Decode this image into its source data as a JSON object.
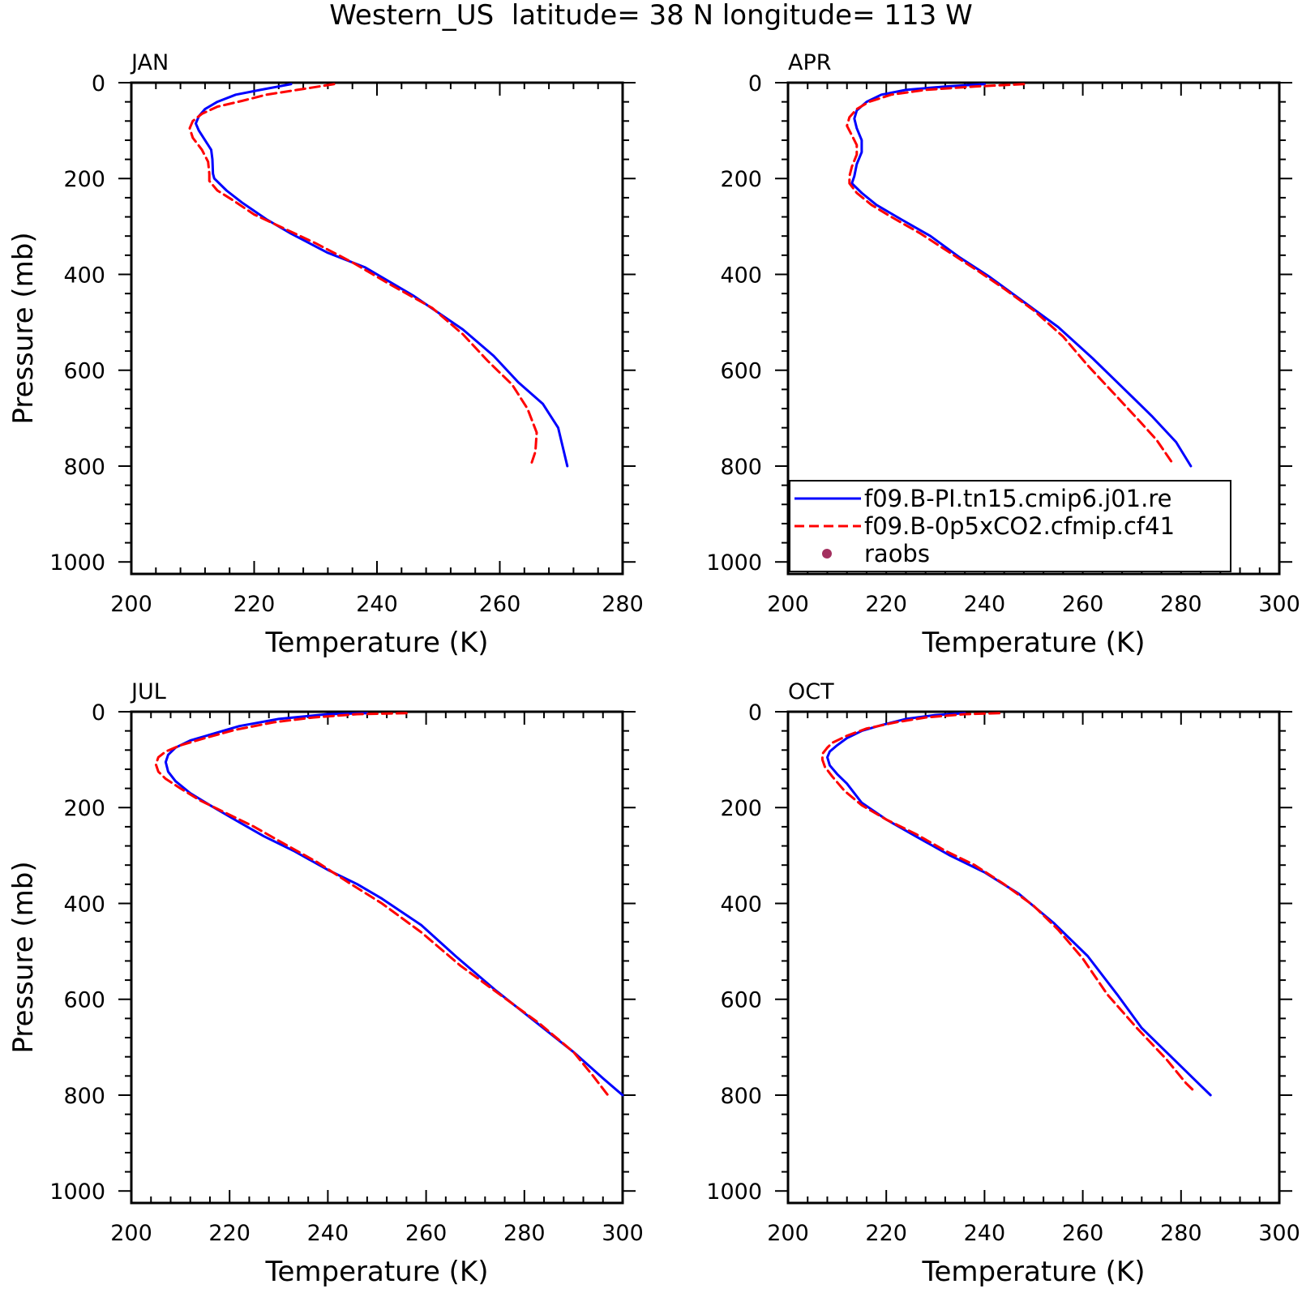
{
  "figure_title": "Western_US  latitude= 38 N longitude= 113 W",
  "legend": [
    {
      "label": "f09.B-PI.tn15.cmip6.j01.re",
      "color": "#0000ff",
      "style": "solid"
    },
    {
      "label": "f09.B-0p5xCO2.cfmip.cf41",
      "color": "#ff0000",
      "style": "dashed"
    },
    {
      "label": "raobs",
      "color": "#a3305f",
      "style": "marker"
    }
  ],
  "chart_data": [
    {
      "type": "line",
      "title": "JAN",
      "xlabel": "Temperature (K)",
      "ylabel": "Pressure (mb)",
      "xlim": [
        200,
        280
      ],
      "ylim": [
        0,
        1025
      ],
      "y_inverted": true,
      "xticks": [
        200,
        220,
        240,
        260,
        280
      ],
      "yticks": [
        0,
        200,
        400,
        600,
        800,
        1000
      ],
      "grid": false,
      "series": [
        {
          "color": "#0000ff",
          "style": "solid",
          "points": [
            [
              226,
              3
            ],
            [
              221,
              15
            ],
            [
              217,
              25
            ],
            [
              214,
              40
            ],
            [
              212,
              55
            ],
            [
              211,
              70
            ],
            [
              210.5,
              85
            ],
            [
              211,
              100
            ],
            [
              212,
              120
            ],
            [
              213,
              140
            ],
            [
              213.2,
              160
            ],
            [
              213.3,
              190
            ],
            [
              213.5,
              200
            ],
            [
              215.5,
              225
            ],
            [
              218,
              250
            ],
            [
              222,
              285
            ],
            [
              226,
              315
            ],
            [
              232,
              355
            ],
            [
              238,
              385
            ],
            [
              246,
              445
            ],
            [
              254,
              515
            ],
            [
              259,
              570
            ],
            [
              263,
              625
            ],
            [
              267,
              670
            ],
            [
              269.5,
              720
            ],
            [
              271,
              800
            ]
          ]
        },
        {
          "color": "#ff0000",
          "style": "dashed",
          "points": [
            [
              233,
              3
            ],
            [
              227,
              15
            ],
            [
              222,
              25
            ],
            [
              218,
              38
            ],
            [
              214,
              50
            ],
            [
              211.5,
              65
            ],
            [
              210,
              80
            ],
            [
              209.5,
              95
            ],
            [
              210,
              115
            ],
            [
              211.5,
              140
            ],
            [
              212.5,
              165
            ],
            [
              212.7,
              190
            ],
            [
              212.7,
              205
            ],
            [
              214,
              225
            ],
            [
              216.5,
              245
            ],
            [
              220,
              275
            ],
            [
              225,
              305
            ],
            [
              230,
              335
            ],
            [
              236,
              375
            ],
            [
              242,
              420
            ],
            [
              249,
              470
            ],
            [
              254,
              525
            ],
            [
              258,
              580
            ],
            [
              262,
              630
            ],
            [
              264.5,
              680
            ],
            [
              266,
              730
            ],
            [
              265.8,
              770
            ],
            [
              265,
              800
            ]
          ]
        }
      ]
    },
    {
      "type": "line",
      "title": "APR",
      "xlabel": "Temperature (K)",
      "ylabel": "",
      "xlim": [
        200,
        300
      ],
      "ylim": [
        0,
        1025
      ],
      "y_inverted": true,
      "xticks": [
        200,
        220,
        240,
        260,
        280,
        300
      ],
      "yticks": [
        0,
        200,
        400,
        600,
        800,
        1000
      ],
      "grid": false,
      "series": [
        {
          "color": "#0000ff",
          "style": "solid",
          "points": [
            [
              240,
              3
            ],
            [
              232,
              8
            ],
            [
              224,
              15
            ],
            [
              219,
              25
            ],
            [
              216,
              40
            ],
            [
              214,
              58
            ],
            [
              213.5,
              75
            ],
            [
              214,
              95
            ],
            [
              215,
              120
            ],
            [
              215,
              145
            ],
            [
              214,
              170
            ],
            [
              213.5,
              195
            ],
            [
              213,
              210
            ],
            [
              215,
              230
            ],
            [
              218,
              255
            ],
            [
              223,
              285
            ],
            [
              229,
              320
            ],
            [
              235,
              365
            ],
            [
              241,
              405
            ],
            [
              247,
              450
            ],
            [
              255,
              510
            ],
            [
              262,
              575
            ],
            [
              268,
              635
            ],
            [
              274,
              695
            ],
            [
              279,
              750
            ],
            [
              282,
              800
            ]
          ]
        },
        {
          "color": "#ff0000",
          "style": "dashed",
          "points": [
            [
              248,
              3
            ],
            [
              238,
              8
            ],
            [
              228,
              15
            ],
            [
              221,
              25
            ],
            [
              216.5,
              40
            ],
            [
              214,
              55
            ],
            [
              212.5,
              72
            ],
            [
              212,
              90
            ],
            [
              213,
              110
            ],
            [
              214,
              130
            ],
            [
              214,
              150
            ],
            [
              213,
              175
            ],
            [
              212.5,
              195
            ],
            [
              212.5,
              210
            ],
            [
              214,
              230
            ],
            [
              217,
              255
            ],
            [
              221,
              280
            ],
            [
              227,
              315
            ],
            [
              233,
              355
            ],
            [
              239,
              395
            ],
            [
              244,
              430
            ],
            [
              250,
              475
            ],
            [
              256,
              530
            ],
            [
              261,
              590
            ],
            [
              266,
              645
            ],
            [
              271,
              700
            ],
            [
              275,
              745
            ],
            [
              278,
              790
            ]
          ]
        }
      ]
    },
    {
      "type": "line",
      "title": "JUL",
      "xlabel": "Temperature (K)",
      "ylabel": "Pressure (mb)",
      "xlim": [
        200,
        300
      ],
      "ylim": [
        0,
        1025
      ],
      "y_inverted": true,
      "xticks": [
        200,
        220,
        240,
        260,
        280,
        300
      ],
      "yticks": [
        0,
        200,
        400,
        600,
        800,
        1000
      ],
      "grid": false,
      "series": [
        {
          "color": "#0000ff",
          "style": "solid",
          "points": [
            [
              248,
              3
            ],
            [
              240,
              5
            ],
            [
              230,
              15
            ],
            [
              222,
              30
            ],
            [
              217,
              45
            ],
            [
              212,
              60
            ],
            [
              209,
              75
            ],
            [
              207.5,
              90
            ],
            [
              207,
              105
            ],
            [
              207.5,
              125
            ],
            [
              209,
              145
            ],
            [
              212,
              170
            ],
            [
              216,
              195
            ],
            [
              221,
              225
            ],
            [
              227,
              260
            ],
            [
              233,
              290
            ],
            [
              240,
              330
            ],
            [
              246,
              360
            ],
            [
              251,
              390
            ],
            [
              259,
              445
            ],
            [
              266,
              510
            ],
            [
              274,
              580
            ],
            [
              282,
              645
            ],
            [
              290,
              710
            ],
            [
              296,
              765
            ],
            [
              300,
              800
            ]
          ]
        },
        {
          "color": "#ff0000",
          "style": "dashed",
          "points": [
            [
              256,
              3
            ],
            [
              246,
              5
            ],
            [
              237,
              12
            ],
            [
              229,
              22
            ],
            [
              221,
              38
            ],
            [
              215,
              55
            ],
            [
              210,
              70
            ],
            [
              207,
              83
            ],
            [
              205.5,
              95
            ],
            [
              205,
              110
            ],
            [
              205.5,
              125
            ],
            [
              207,
              140
            ],
            [
              210,
              160
            ],
            [
              214,
              185
            ],
            [
              219,
              210
            ],
            [
              225,
              240
            ],
            [
              231,
              275
            ],
            [
              238,
              315
            ],
            [
              244,
              355
            ],
            [
              251,
              400
            ],
            [
              259,
              460
            ],
            [
              267,
              530
            ],
            [
              275,
              590
            ],
            [
              283,
              650
            ],
            [
              290,
              710
            ],
            [
              294,
              760
            ],
            [
              297,
              800
            ]
          ]
        }
      ]
    },
    {
      "type": "line",
      "title": "OCT",
      "xlabel": "Temperature (K)",
      "ylabel": "",
      "xlim": [
        200,
        300
      ],
      "ylim": [
        0,
        1025
      ],
      "y_inverted": true,
      "xticks": [
        200,
        220,
        240,
        260,
        280,
        300
      ],
      "yticks": [
        0,
        200,
        400,
        600,
        800,
        1000
      ],
      "grid": false,
      "series": [
        {
          "color": "#0000ff",
          "style": "solid",
          "points": [
            [
              236,
              3
            ],
            [
              230,
              7
            ],
            [
              224,
              15
            ],
            [
              219,
              28
            ],
            [
              215,
              40
            ],
            [
              212,
              55
            ],
            [
              210,
              70
            ],
            [
              208.5,
              83
            ],
            [
              208,
              95
            ],
            [
              208.5,
              112
            ],
            [
              210,
              130
            ],
            [
              212,
              150
            ],
            [
              215,
              190
            ],
            [
              220,
              225
            ],
            [
              226,
              260
            ],
            [
              233,
              300
            ],
            [
              240,
              335
            ],
            [
              247,
              380
            ],
            [
              254,
              440
            ],
            [
              261,
              510
            ],
            [
              267,
              590
            ],
            [
              272,
              660
            ],
            [
              279,
              730
            ],
            [
              284,
              780
            ],
            [
              286,
              800
            ]
          ]
        },
        {
          "color": "#ff0000",
          "style": "dashed",
          "points": [
            [
              243,
              3
            ],
            [
              236,
              5
            ],
            [
              228,
              12
            ],
            [
              222,
              22
            ],
            [
              216,
              35
            ],
            [
              212,
              50
            ],
            [
              209,
              65
            ],
            [
              208,
              75
            ],
            [
              207,
              88
            ],
            [
              207,
              100
            ],
            [
              207.5,
              115
            ],
            [
              209,
              135
            ],
            [
              211.5,
              165
            ],
            [
              215,
              195
            ],
            [
              220,
              225
            ],
            [
              226,
              255
            ],
            [
              232,
              290
            ],
            [
              238,
              320
            ],
            [
              244,
              360
            ],
            [
              250,
              405
            ],
            [
              255,
              455
            ],
            [
              260,
              515
            ],
            [
              265,
              590
            ],
            [
              271,
              660
            ],
            [
              277,
              725
            ],
            [
              281,
              775
            ],
            [
              283,
              795
            ]
          ]
        }
      ]
    }
  ]
}
